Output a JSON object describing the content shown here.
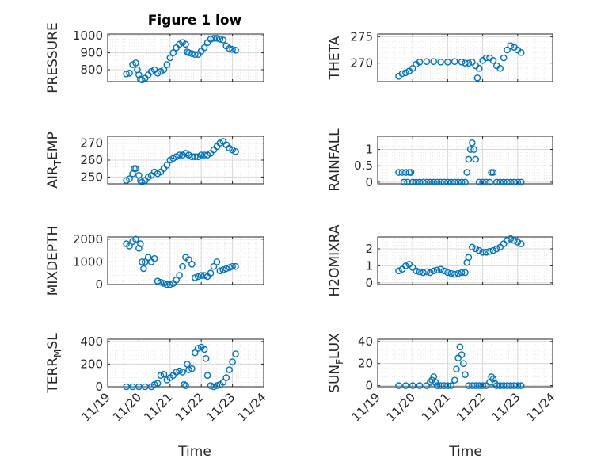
{
  "figure_title": "Figure 1 low",
  "colors": {
    "marker": "#0072BD",
    "grid": "#d9d9d9",
    "axis": "#262626",
    "text": "#262626"
  },
  "x_axis": {
    "label": "Time",
    "ticks": [
      "11/19",
      "11/20",
      "11/21",
      "11/22",
      "11/23",
      "11/24"
    ]
  },
  "chart_data": [
    {
      "type": "scatter",
      "title": "Figure 1 low",
      "ylabel": "PRESSURE",
      "xlim": [
        0,
        5
      ],
      "ylim": [
        730,
        1010
      ],
      "yticks": [
        800,
        900,
        1000
      ],
      "yticklabels": [
        "800",
        "900",
        "1000"
      ],
      "grid": true,
      "marker": "open-circle",
      "x": [
        0.6,
        0.7,
        0.8,
        0.9,
        0.95,
        1.0,
        1.05,
        1.1,
        1.2,
        1.3,
        1.4,
        1.5,
        1.6,
        1.7,
        1.8,
        1.9,
        2.0,
        2.1,
        2.2,
        2.3,
        2.4,
        2.5,
        2.55,
        2.6,
        2.7,
        2.8,
        2.9,
        3.0,
        3.1,
        3.2,
        3.3,
        3.4,
        3.5,
        3.6,
        3.7,
        3.8,
        3.9,
        4.0,
        4.1
      ],
      "y": [
        775,
        780,
        830,
        840,
        800,
        770,
        745,
        740,
        750,
        770,
        790,
        800,
        780,
        790,
        800,
        830,
        870,
        900,
        930,
        950,
        960,
        950,
        905,
        900,
        895,
        890,
        890,
        910,
        930,
        960,
        980,
        985,
        985,
        980,
        975,
        940,
        925,
        920,
        915
      ]
    },
    {
      "type": "scatter",
      "ylabel": "THETA",
      "xlim": [
        0,
        5
      ],
      "ylim": [
        266.5,
        275.5
      ],
      "yticks": [
        270,
        275
      ],
      "yticklabels": [
        "270",
        "275"
      ],
      "grid": true,
      "marker": "open-circle",
      "x": [
        0.6,
        0.7,
        0.8,
        0.9,
        1.0,
        1.1,
        1.2,
        1.4,
        1.6,
        1.8,
        2.0,
        2.2,
        2.4,
        2.5,
        2.6,
        2.7,
        2.8,
        2.85,
        2.9,
        3.0,
        3.1,
        3.2,
        3.3,
        3.4,
        3.5,
        3.6,
        3.7,
        3.8,
        3.9,
        4.0,
        4.1
      ],
      "y": [
        267.5,
        268,
        268.2,
        268.5,
        269,
        269.8,
        270.2,
        270.3,
        270.3,
        270.2,
        270.2,
        270.3,
        270.2,
        270.0,
        270.0,
        270.2,
        269.5,
        267.2,
        269,
        270.5,
        271,
        271,
        270.5,
        269.5,
        269,
        271,
        272.5,
        273.3,
        273,
        272.5,
        272
      ]
    },
    {
      "type": "scatter",
      "ylabel": "AIR_TEMP",
      "xlim": [
        0,
        5
      ],
      "ylim": [
        246,
        274
      ],
      "yticks": [
        250,
        260,
        270
      ],
      "yticklabels": [
        "250",
        "260",
        "270"
      ],
      "grid": true,
      "marker": "open-circle",
      "x": [
        0.6,
        0.7,
        0.8,
        0.85,
        0.9,
        1.0,
        1.05,
        1.1,
        1.2,
        1.3,
        1.4,
        1.5,
        1.6,
        1.7,
        1.8,
        1.9,
        2.0,
        2.1,
        2.2,
        2.3,
        2.4,
        2.5,
        2.6,
        2.7,
        2.8,
        2.9,
        3.0,
        3.1,
        3.2,
        3.3,
        3.4,
        3.5,
        3.6,
        3.7,
        3.8,
        3.9,
        4.0,
        4.1
      ],
      "y": [
        248,
        249,
        252,
        255,
        255,
        251,
        248,
        247,
        248,
        250,
        251,
        253,
        252,
        253,
        255,
        257,
        260,
        261,
        262,
        263,
        263,
        264,
        263,
        262,
        262,
        262,
        263,
        263,
        263,
        264,
        266,
        268,
        270,
        271,
        269,
        267,
        266,
        265
      ]
    },
    {
      "type": "scatter",
      "ylabel": "RAINFALL",
      "xlim": [
        0,
        5
      ],
      "ylim": [
        -0.05,
        1.4
      ],
      "yticks": [
        0,
        0.5,
        1
      ],
      "yticklabels": [
        "0",
        "0.5",
        "1"
      ],
      "grid": true,
      "marker": "open-circle",
      "x": [
        0.6,
        0.7,
        0.75,
        0.8,
        0.85,
        0.9,
        0.95,
        1.0,
        1.1,
        1.2,
        1.3,
        1.4,
        1.5,
        1.6,
        1.7,
        1.8,
        1.9,
        2.0,
        2.1,
        2.2,
        2.3,
        2.4,
        2.5,
        2.55,
        2.6,
        2.65,
        2.7,
        2.75,
        2.8,
        2.9,
        3.0,
        3.1,
        3.2,
        3.25,
        3.3,
        3.4,
        3.5,
        3.6,
        3.7,
        3.8,
        3.9,
        4.0,
        4.1
      ],
      "y": [
        0.3,
        0.3,
        0,
        0.3,
        0,
        0.3,
        0.3,
        0,
        0,
        0,
        0,
        0,
        0,
        0,
        0,
        0,
        0,
        0,
        0,
        0,
        0,
        0,
        0,
        0.3,
        0.7,
        1.0,
        1.2,
        1.0,
        0.7,
        0,
        0,
        0,
        0,
        0.3,
        0.3,
        0,
        0,
        0,
        0,
        0,
        0,
        0,
        0
      ]
    },
    {
      "type": "scatter",
      "ylabel": "MIXDEPTH",
      "xlim": [
        0,
        5
      ],
      "ylim": [
        0,
        2100
      ],
      "yticks": [
        0,
        1000,
        2000
      ],
      "yticklabels": [
        "0",
        "1000",
        "2000"
      ],
      "grid": true,
      "marker": "open-circle",
      "x": [
        0.6,
        0.7,
        0.8,
        0.9,
        1.0,
        1.05,
        1.1,
        1.15,
        1.2,
        1.3,
        1.4,
        1.5,
        1.6,
        1.7,
        1.8,
        1.9,
        2.0,
        2.1,
        2.2,
        2.3,
        2.4,
        2.5,
        2.6,
        2.7,
        2.8,
        2.9,
        3.0,
        3.1,
        3.2,
        3.3,
        3.4,
        3.5,
        3.6,
        3.7,
        3.8,
        3.9,
        4.0,
        4.1
      ],
      "y": [
        1800,
        1700,
        1900,
        2000,
        1600,
        1800,
        1000,
        700,
        1000,
        1200,
        1000,
        1150,
        150,
        100,
        50,
        0,
        0,
        50,
        200,
        400,
        800,
        1200,
        1100,
        900,
        300,
        350,
        400,
        400,
        350,
        500,
        800,
        1000,
        600,
        650,
        700,
        750,
        800,
        800
      ]
    },
    {
      "type": "scatter",
      "ylabel": "H2OMIXRA",
      "xlim": [
        0,
        5
      ],
      "ylim": [
        -0.1,
        2.7
      ],
      "yticks": [
        0,
        1,
        2
      ],
      "yticklabels": [
        "0",
        "1",
        "2"
      ],
      "grid": true,
      "marker": "open-circle",
      "x": [
        0.6,
        0.7,
        0.8,
        0.9,
        1.0,
        1.1,
        1.2,
        1.3,
        1.4,
        1.5,
        1.6,
        1.7,
        1.8,
        1.9,
        2.0,
        2.1,
        2.2,
        2.3,
        2.4,
        2.5,
        2.55,
        2.6,
        2.7,
        2.8,
        2.9,
        3.0,
        3.1,
        3.2,
        3.3,
        3.4,
        3.5,
        3.6,
        3.7,
        3.8,
        3.9,
        4.0,
        4.1
      ],
      "y": [
        0.7,
        0.8,
        1.0,
        1.1,
        0.9,
        0.7,
        0.65,
        0.6,
        0.65,
        0.6,
        0.7,
        0.75,
        0.8,
        0.7,
        0.6,
        0.55,
        0.5,
        0.55,
        0.6,
        0.6,
        1.2,
        1.5,
        2.1,
        2.0,
        1.9,
        1.8,
        1.8,
        1.85,
        1.9,
        2.0,
        2.1,
        2.3,
        2.5,
        2.6,
        2.5,
        2.4,
        2.3
      ]
    },
    {
      "type": "scatter",
      "ylabel": "TERR_MSL",
      "xlim": [
        0,
        5
      ],
      "ylim": [
        0,
        420
      ],
      "yticks": [
        0,
        200,
        400
      ],
      "yticklabels": [
        "0",
        "200",
        "400"
      ],
      "grid": true,
      "marker": "open-circle",
      "x": [
        0.6,
        0.8,
        1.0,
        1.2,
        1.4,
        1.5,
        1.6,
        1.7,
        1.8,
        1.9,
        2.0,
        2.1,
        2.2,
        2.3,
        2.4,
        2.45,
        2.5,
        2.55,
        2.6,
        2.7,
        2.8,
        2.9,
        3.0,
        3.1,
        3.15,
        3.2,
        3.3,
        3.4,
        3.5,
        3.6,
        3.7,
        3.8,
        3.9,
        4.0,
        4.1
      ],
      "y": [
        0,
        0,
        0,
        0,
        0,
        20,
        30,
        100,
        110,
        60,
        80,
        100,
        130,
        140,
        130,
        20,
        10,
        200,
        150,
        160,
        300,
        340,
        350,
        330,
        250,
        100,
        10,
        0,
        10,
        20,
        40,
        80,
        150,
        220,
        290
      ]
    },
    {
      "type": "scatter",
      "ylabel": "SUN_FLUX",
      "xlim": [
        0,
        5
      ],
      "ylim": [
        -1,
        42
      ],
      "yticks": [
        0,
        20,
        40
      ],
      "yticklabels": [
        "0",
        "20",
        "40"
      ],
      "grid": true,
      "marker": "open-circle",
      "x": [
        0.6,
        0.8,
        1.0,
        1.2,
        1.4,
        1.5,
        1.55,
        1.6,
        1.65,
        1.7,
        1.8,
        1.9,
        2.0,
        2.1,
        2.2,
        2.25,
        2.3,
        2.35,
        2.4,
        2.45,
        2.5,
        2.6,
        2.7,
        2.8,
        2.9,
        3.0,
        3.1,
        3.2,
        3.25,
        3.3,
        3.35,
        3.4,
        3.5,
        3.6,
        3.7,
        3.8,
        3.9,
        4.0,
        4.1
      ],
      "y": [
        0,
        0,
        0,
        0,
        0,
        3,
        5,
        8,
        3,
        0,
        0,
        0,
        0,
        0,
        5,
        15,
        25,
        35,
        28,
        20,
        10,
        0,
        0,
        0,
        0,
        0,
        0,
        3,
        8,
        6,
        2,
        0,
        0,
        0,
        0,
        0,
        0,
        0,
        0
      ]
    }
  ]
}
